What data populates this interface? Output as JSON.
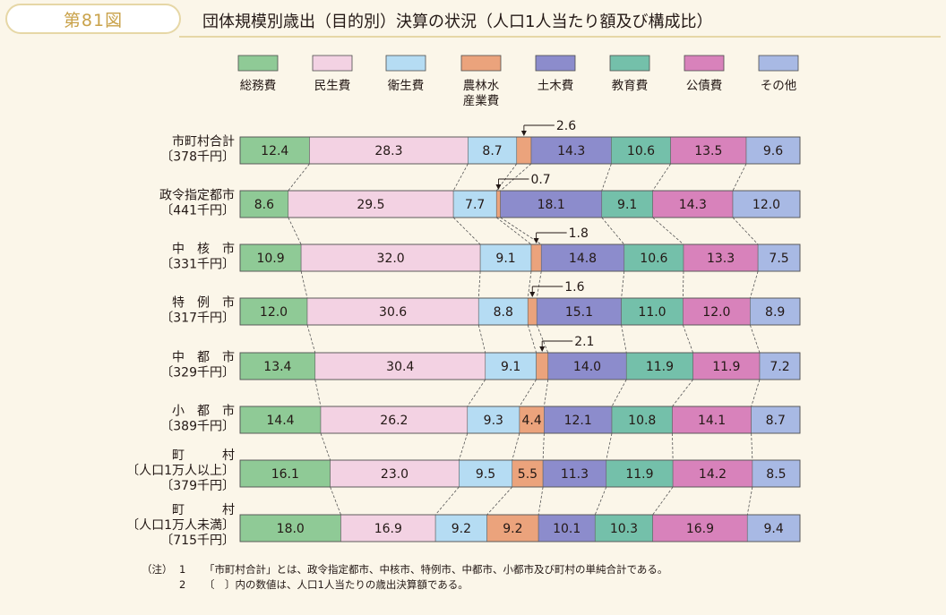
{
  "header": {
    "figure_label": "第81図",
    "title": "団体規模別歳出（目的別）決算の状況（人口1人当たり額及び構成比）"
  },
  "chart_data": {
    "type": "bar",
    "orientation": "horizontal",
    "stacked": "percent",
    "legend_position": "top",
    "legend": [
      {
        "key": "soumu",
        "label": "総務費",
        "color": "#8fca96"
      },
      {
        "key": "minsei",
        "label": "民生費",
        "color": "#f3d2e3"
      },
      {
        "key": "eisei",
        "label": "衛生費",
        "color": "#b5dcf3"
      },
      {
        "key": "nourin",
        "label": "農林水産業費",
        "label_lines": [
          "農林水",
          "産業費"
        ],
        "color": "#eba37c"
      },
      {
        "key": "doboku",
        "label": "土木費",
        "color": "#8c8ccc"
      },
      {
        "key": "kyouiku",
        "label": "教育費",
        "color": "#74c0aa"
      },
      {
        "key": "kousai",
        "label": "公債費",
        "color": "#d882bb"
      },
      {
        "key": "sonota",
        "label": "その他",
        "color": "#a8b9e4"
      }
    ],
    "categories": [
      {
        "lines": [
          "市町村合計",
          "〔378千円〕"
        ],
        "values": [
          12.4,
          28.3,
          8.7,
          2.6,
          14.3,
          10.6,
          13.5,
          9.6
        ],
        "callout": "2.6"
      },
      {
        "lines": [
          "政令指定都市",
          "〔441千円〕"
        ],
        "values": [
          8.6,
          29.5,
          7.7,
          0.7,
          18.1,
          9.1,
          14.3,
          12.0
        ],
        "callout": "0.7"
      },
      {
        "lines": [
          "中　核　市",
          "〔331千円〕"
        ],
        "values": [
          10.9,
          32.0,
          9.1,
          1.8,
          14.8,
          10.6,
          13.3,
          7.5
        ],
        "callout": "1.8"
      },
      {
        "lines": [
          "特　例　市",
          "〔317千円〕"
        ],
        "values": [
          12.0,
          30.6,
          8.8,
          1.6,
          15.1,
          11.0,
          12.0,
          8.9
        ],
        "callout": "1.6"
      },
      {
        "lines": [
          "中　都　市",
          "〔329千円〕"
        ],
        "values": [
          13.4,
          30.4,
          9.1,
          2.1,
          14.0,
          11.9,
          11.9,
          7.2
        ],
        "callout": "2.1"
      },
      {
        "lines": [
          "小　都　市",
          "〔389千円〕"
        ],
        "values": [
          14.4,
          26.2,
          9.3,
          4.4,
          12.1,
          10.8,
          14.1,
          8.7
        ],
        "callout": ""
      },
      {
        "lines": [
          "町　　　村",
          "〔人口1万人以上〕",
          "〔379千円〕"
        ],
        "values": [
          16.1,
          23.0,
          9.5,
          5.5,
          11.3,
          11.9,
          14.2,
          8.5
        ],
        "callout": ""
      },
      {
        "lines": [
          "町　　　村",
          "〔人口1万人未満〕",
          "〔715千円〕"
        ],
        "values": [
          18.0,
          16.9,
          9.2,
          9.2,
          10.1,
          10.3,
          16.9,
          9.4
        ],
        "callout": ""
      }
    ]
  },
  "notes": [
    {
      "head": "（注）",
      "num": "1",
      "text": "「市町村合計」とは、政令指定都市、中核市、特例市、中都市、小都市及び町村の単純合計である。"
    },
    {
      "head": "",
      "num": "2",
      "text": "〔　〕内の数値は、人口1人当たりの歳出決算額である。"
    }
  ]
}
